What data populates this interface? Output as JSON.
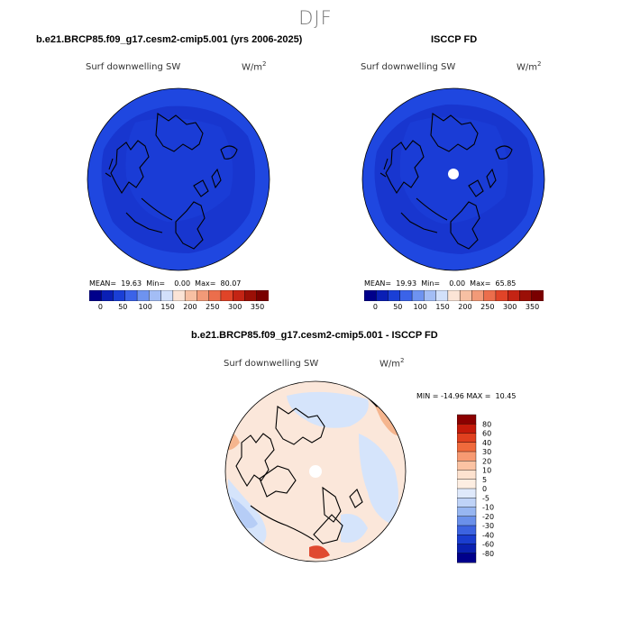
{
  "season": "DJF",
  "panel_left": {
    "title": "b.e21.BRCP85.f09_g17.cesm2-cmip5.001 (yrs 2006-2025)",
    "variable": "Surf downwelling SW",
    "units": "W/m",
    "units_exp": "2",
    "stats": "MEAN=  19.63  Min=    0.00  Max=  80.07"
  },
  "panel_right": {
    "title": "ISCCP FD",
    "variable": "Surf downwelling SW",
    "units": "W/m",
    "units_exp": "2",
    "stats": "MEAN=  19.93  Min=    0.00  Max=  65.85"
  },
  "panel_diff": {
    "title": "b.e21.BRCP85.f09_g17.cesm2-cmip5.001 - ISCCP FD",
    "variable": "Surf downwelling SW",
    "units": "W/m",
    "units_exp": "2",
    "stats": "MIN = -14.96 MAX =  10.45"
  },
  "horizontal_colorbar": {
    "tick_labels": [
      "0",
      "50",
      "100",
      "150",
      "200",
      "250",
      "300",
      "350"
    ],
    "colors": [
      "#00008b",
      "#0a1fb5",
      "#1a3fd6",
      "#3b63e8",
      "#6e93f0",
      "#a3bdf5",
      "#d2e0fa",
      "#fbe4d6",
      "#f7c0a3",
      "#f29a78",
      "#eb6e4c",
      "#e04428",
      "#c42414",
      "#9b0f06",
      "#7a0000"
    ]
  },
  "vertical_colorbar": {
    "tick_labels": [
      "80",
      "60",
      "40",
      "30",
      "20",
      "10",
      "5",
      "0",
      "-5",
      "-10",
      "-20",
      "-30",
      "-40",
      "-60",
      "-80"
    ],
    "colors": [
      "#8b0000",
      "#c41a0a",
      "#e0401f",
      "#f06a3c",
      "#f79a72",
      "#fbc3a3",
      "#fde2cf",
      "#fdeee2",
      "#dfe9fb",
      "#bfd3f7",
      "#97b6f1",
      "#6a90ea",
      "#3c63e0",
      "#1a3dcf",
      "#0a20b0",
      "#00008b"
    ]
  },
  "map_colors": {
    "outer_blue": "#1f47e0",
    "inner_blue": "#1836cf",
    "mid_blue": "#1a3cd6",
    "diff_background": "#fbe7da",
    "diff_light_blue": "#d5e4fb",
    "diff_mid_blue": "#b6cdf6",
    "diff_orange": "#f5b58e",
    "diff_red": "#e04a30",
    "pole_hole": "#ffffff",
    "coastline": "#000000"
  }
}
